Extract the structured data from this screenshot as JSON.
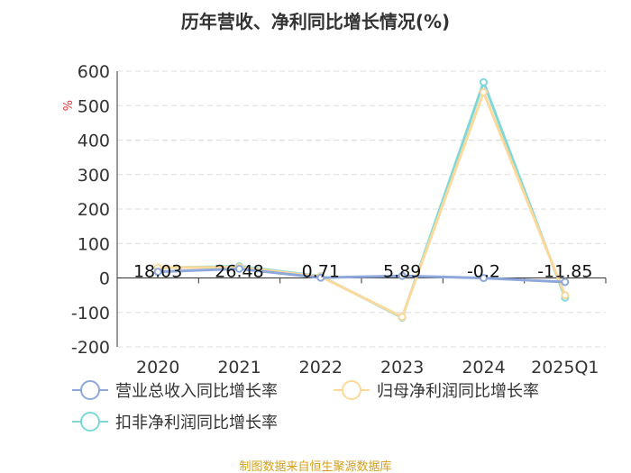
{
  "chart_data": {
    "type": "line",
    "title": "历年营收、净利同比增长情况(%)",
    "ylabel": "%",
    "categories": [
      "2020",
      "2021",
      "2022",
      "2023",
      "2024",
      "2025Q1"
    ],
    "ylim": [
      -200,
      600
    ],
    "yticks": [
      600,
      500,
      400,
      300,
      200,
      100,
      0,
      -100,
      -200
    ],
    "series": [
      {
        "name": "营业总收入同比增长率",
        "color": "#8fa8dc",
        "values": [
          18.03,
          26.48,
          0.71,
          5.89,
          -0.2,
          -11.85
        ],
        "labels": [
          "18.03",
          "26.48",
          "0.71",
          "5.89",
          "-0.2",
          "-11.85"
        ]
      },
      {
        "name": "归母净利润同比增长率",
        "color": "#fcd99a",
        "values": [
          30,
          31,
          4,
          -113,
          539,
          -50
        ]
      },
      {
        "name": "扣非净利润同比增长率",
        "color": "#7fd8d8",
        "values": [
          29,
          34,
          5,
          -115,
          568,
          -57
        ]
      }
    ],
    "legend_position": "bottom",
    "grid": true
  },
  "source": "制图数据来自恒生聚源数据库"
}
